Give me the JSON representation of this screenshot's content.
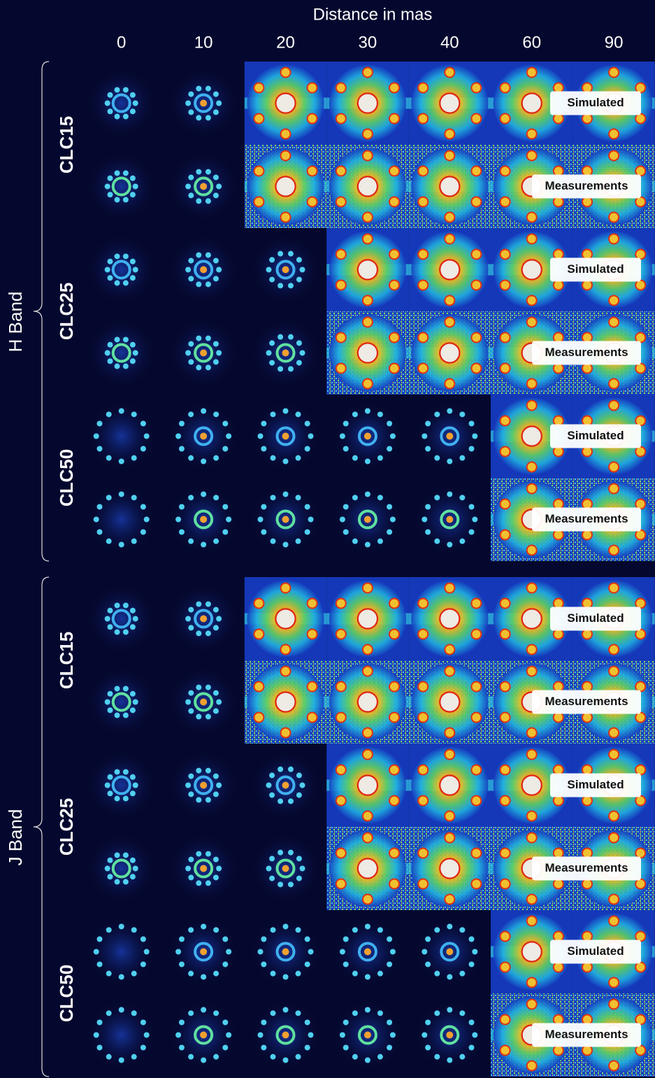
{
  "header": {
    "title": "Distance in mas",
    "columns": [
      "0",
      "10",
      "20",
      "30",
      "40",
      "60",
      "90"
    ]
  },
  "bands": [
    {
      "label": "H Band",
      "groups": [
        {
          "label": "CLC15",
          "rows": [
            {
              "tag": "Simulated"
            },
            {
              "tag": "Measurements"
            }
          ]
        },
        {
          "label": "CLC25",
          "rows": [
            {
              "tag": "Simulated"
            },
            {
              "tag": "Measurements"
            }
          ]
        },
        {
          "label": "CLC50",
          "rows": [
            {
              "tag": "Simulated"
            },
            {
              "tag": "Measurements"
            }
          ]
        }
      ]
    },
    {
      "label": "J Band",
      "groups": [
        {
          "label": "CLC15",
          "rows": [
            {
              "tag": "Simulated"
            },
            {
              "tag": "Measurements"
            }
          ]
        },
        {
          "label": "CLC25",
          "rows": [
            {
              "tag": "Simulated"
            },
            {
              "tag": "Measurements"
            }
          ]
        },
        {
          "label": "CLC50",
          "rows": [
            {
              "tag": "Simulated"
            },
            {
              "tag": "Measurements"
            }
          ]
        }
      ]
    }
  ]
}
